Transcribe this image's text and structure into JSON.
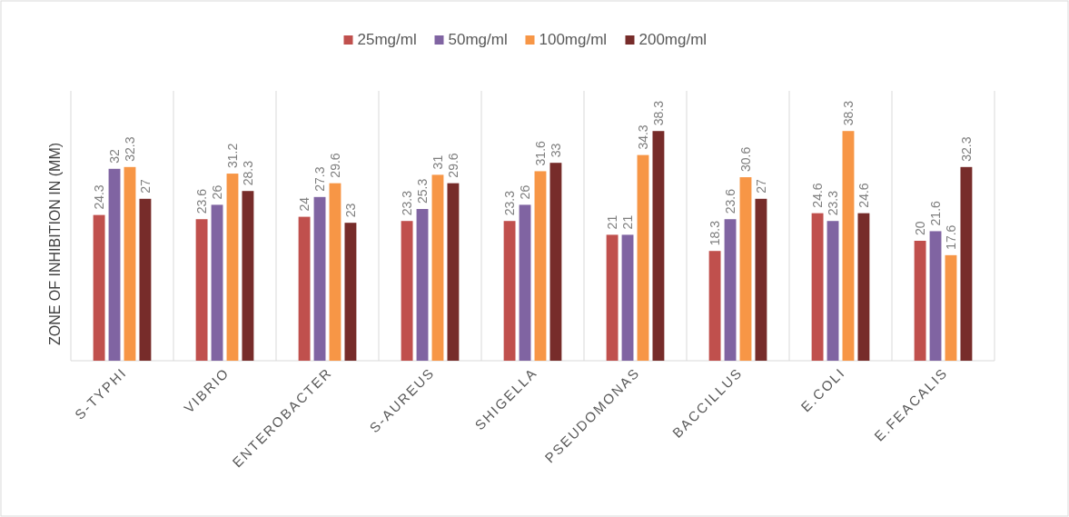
{
  "chart_data": {
    "type": "bar",
    "ylabel": "ZONE OF INHIBITION IN (MM)",
    "categories": [
      "S-TYPHI",
      "VIBRIO",
      "ENTEROBACTER",
      "S-AUREUS",
      "SHIGELLA",
      "PSEUDOMONAS",
      "BACCILLUS",
      "E.COLI",
      "E.FEACALIS"
    ],
    "series": [
      {
        "name": "25mg/ml",
        "color": "#c0504d",
        "values": [
          24.3,
          23.6,
          24,
          23.3,
          23.3,
          21,
          18.3,
          24.6,
          20
        ]
      },
      {
        "name": "50mg/ml",
        "color": "#8064a2",
        "values": [
          32,
          26,
          27.3,
          25.3,
          26,
          21,
          23.6,
          23.3,
          21.6
        ]
      },
      {
        "name": "100mg/ml",
        "color": "#f79646",
        "values": [
          32.3,
          31.2,
          29.6,
          31,
          31.6,
          34.3,
          30.6,
          38.3,
          17.6
        ]
      },
      {
        "name": "200mg/ml",
        "color": "#772c2a",
        "values": [
          27,
          28.3,
          23,
          29.6,
          33,
          38.3,
          27,
          24.6,
          32.3
        ]
      }
    ],
    "ylim": [
      0,
      45
    ],
    "grid": "x",
    "legend": "top",
    "data_labels": true,
    "tick_labels": "x"
  }
}
